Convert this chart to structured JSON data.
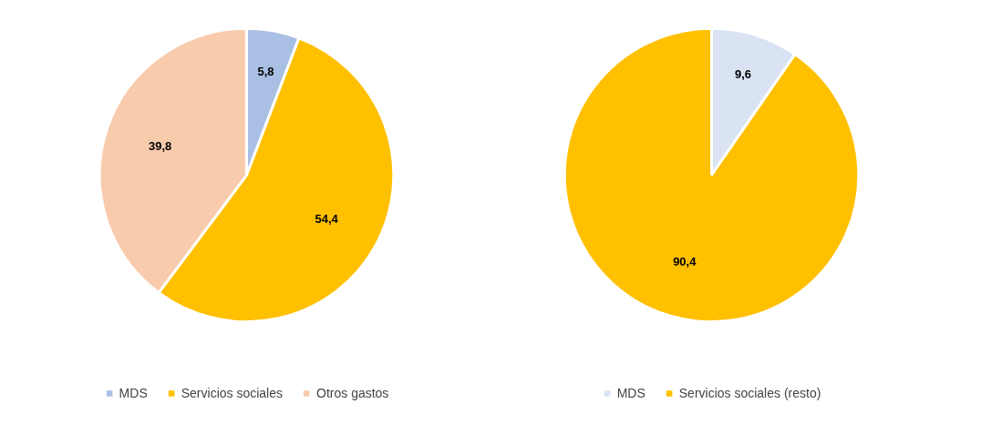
{
  "chart_data": [
    {
      "type": "pie",
      "categories": [
        "MDS",
        "Servicios sociales",
        "Otros gastos"
      ],
      "values": [
        5.8,
        54.4,
        39.8
      ],
      "colors": [
        "#a9bfe3",
        "#ffc000",
        "#f8cbad"
      ],
      "value_labels": [
        "5,8",
        "54,4",
        "39,8"
      ],
      "legend": "bottom"
    },
    {
      "type": "pie",
      "categories": [
        "MDS",
        "Servicios sociales (resto)"
      ],
      "values": [
        9.6,
        90.4
      ],
      "colors": [
        "#dae3f3",
        "#ffc000"
      ],
      "value_labels": [
        "9,6",
        "90,4"
      ],
      "legend": "bottom"
    }
  ]
}
